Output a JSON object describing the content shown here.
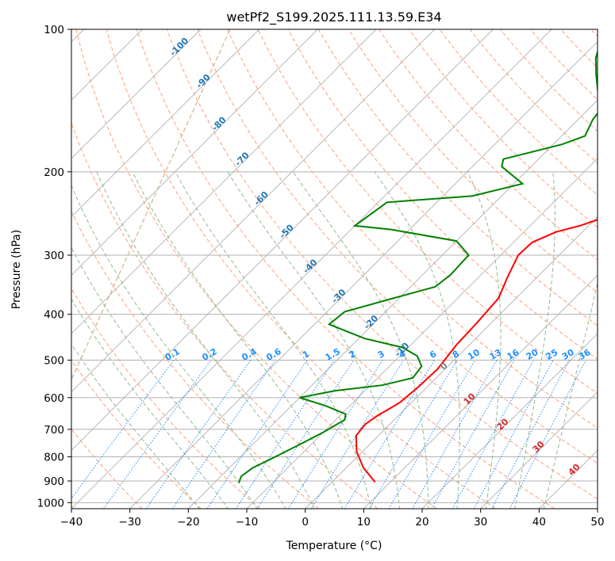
{
  "chart_data": {
    "type": "line",
    "subtype": "skew-t log-p diagram",
    "title": "wetPf2_S199.2025.111.13.59.E34",
    "xlabel": "Temperature (°C)",
    "ylabel": "Pressure (hPa)",
    "xlim": [
      -40,
      50
    ],
    "ylim": [
      1030,
      100
    ],
    "y_scale": "log",
    "grid": true,
    "x_ticks": [
      "−40",
      "−30",
      "−20",
      "−10",
      "0",
      "10",
      "20",
      "30",
      "40",
      "50"
    ],
    "x_tick_values": [
      -40,
      -30,
      -20,
      -10,
      0,
      10,
      20,
      30,
      40,
      50
    ],
    "y_ticks": [
      "100",
      "200",
      "300",
      "400",
      "500",
      "600",
      "700",
      "800",
      "900",
      "1000"
    ],
    "y_tick_values": [
      100,
      200,
      300,
      400,
      500,
      600,
      700,
      800,
      900,
      1000
    ],
    "series": [
      {
        "role": "temperature",
        "color": "#ff0000",
        "points": [
          [
            7.4,
            905
          ],
          [
            3.0,
            845
          ],
          [
            -1.0,
            780
          ],
          [
            -3.8,
            722
          ],
          [
            -4.2,
            683
          ],
          [
            -3.6,
            655
          ],
          [
            -2.0,
            615
          ],
          [
            -1.5,
            568
          ],
          [
            -1.3,
            522
          ],
          [
            -2.2,
            465
          ],
          [
            -2.5,
            415
          ],
          [
            -3.0,
            370
          ],
          [
            -5.0,
            335
          ],
          [
            -7.0,
            300
          ],
          [
            -6.8,
            282
          ],
          [
            -4.5,
            268
          ],
          [
            -1.5,
            260
          ],
          [
            1.2,
            250
          ],
          [
            2.0,
            240
          ],
          [
            3.5,
            220
          ],
          [
            5.0,
            200
          ],
          [
            7.0,
            185
          ],
          [
            8.3,
            170
          ],
          [
            8.7,
            160
          ],
          [
            10.0,
            150
          ],
          [
            12.0,
            140
          ],
          [
            13.2,
            130
          ],
          [
            14.5,
            120
          ],
          [
            17.0,
            110
          ],
          [
            18.5,
            100
          ]
        ]
      },
      {
        "role": "dewpoint",
        "color": "#008000",
        "points": [
          [
            -15.8,
            908
          ],
          [
            -16.5,
            880
          ],
          [
            -16.0,
            845
          ],
          [
            -14.0,
            800
          ],
          [
            -12.0,
            755
          ],
          [
            -10.0,
            710
          ],
          [
            -8.5,
            668
          ],
          [
            -9.3,
            650
          ],
          [
            -14.0,
            625
          ],
          [
            -20.0,
            600
          ],
          [
            -15.0,
            580
          ],
          [
            -8.0,
            565
          ],
          [
            -4.0,
            545
          ],
          [
            -4.5,
            515
          ],
          [
            -7.0,
            490
          ],
          [
            -11.0,
            470
          ],
          [
            -19.0,
            450
          ],
          [
            -27.5,
            420
          ],
          [
            -27.0,
            395
          ],
          [
            -21.0,
            370
          ],
          [
            -15.8,
            350
          ],
          [
            -15.2,
            330
          ],
          [
            -15.5,
            300
          ],
          [
            -20.0,
            280
          ],
          [
            -33.0,
            265
          ],
          [
            -40.0,
            260
          ],
          [
            -38.5,
            232
          ],
          [
            -25.0,
            225
          ],
          [
            -18.5,
            212
          ],
          [
            -25.0,
            195
          ],
          [
            -26.0,
            188
          ],
          [
            -18.5,
            175
          ],
          [
            -16.0,
            168
          ],
          [
            -17.5,
            155
          ],
          [
            -18.0,
            145
          ],
          [
            -21.5,
            135
          ],
          [
            -24.5,
            125
          ],
          [
            -27.5,
            115
          ],
          [
            -31.0,
            100
          ]
        ]
      }
    ],
    "background_lines": {
      "isotherms_color": "#b0b0b0",
      "dry_adiabats_color": "#ffa07a",
      "moist_adiabats_color": "#8fbc8f",
      "mixing_ratio_color": "#1e90ff",
      "ccl_curve_color": "#d2b48c"
    },
    "annotations": {
      "isotherm_labels": [
        {
          "text": "-100",
          "color": "#1f77b4"
        },
        {
          "text": "-90",
          "color": "#1f77b4"
        },
        {
          "text": "-80",
          "color": "#1f77b4"
        },
        {
          "text": "-70",
          "color": "#1f77b4"
        },
        {
          "text": "-60",
          "color": "#1f77b4"
        },
        {
          "text": "-50",
          "color": "#1f77b4"
        },
        {
          "text": "-40",
          "color": "#1f77b4"
        },
        {
          "text": "-30",
          "color": "#1f77b4"
        },
        {
          "text": "-20",
          "color": "#1f77b4"
        },
        {
          "text": "-10",
          "color": "#1f77b4"
        },
        {
          "text": "0",
          "color": "#808080"
        },
        {
          "text": "10",
          "color": "#d62728"
        },
        {
          "text": "20",
          "color": "#d62728"
        },
        {
          "text": "30",
          "color": "#d62728"
        },
        {
          "text": "40",
          "color": "#d62728"
        }
      ],
      "mixing_ratio_labels": [
        "0.1",
        "0.2",
        "0.4",
        "0.6",
        "1",
        "1.5",
        "2",
        "3",
        "4",
        "6",
        "8",
        "10",
        "13",
        "16",
        "20",
        "25",
        "30",
        "36"
      ]
    }
  }
}
